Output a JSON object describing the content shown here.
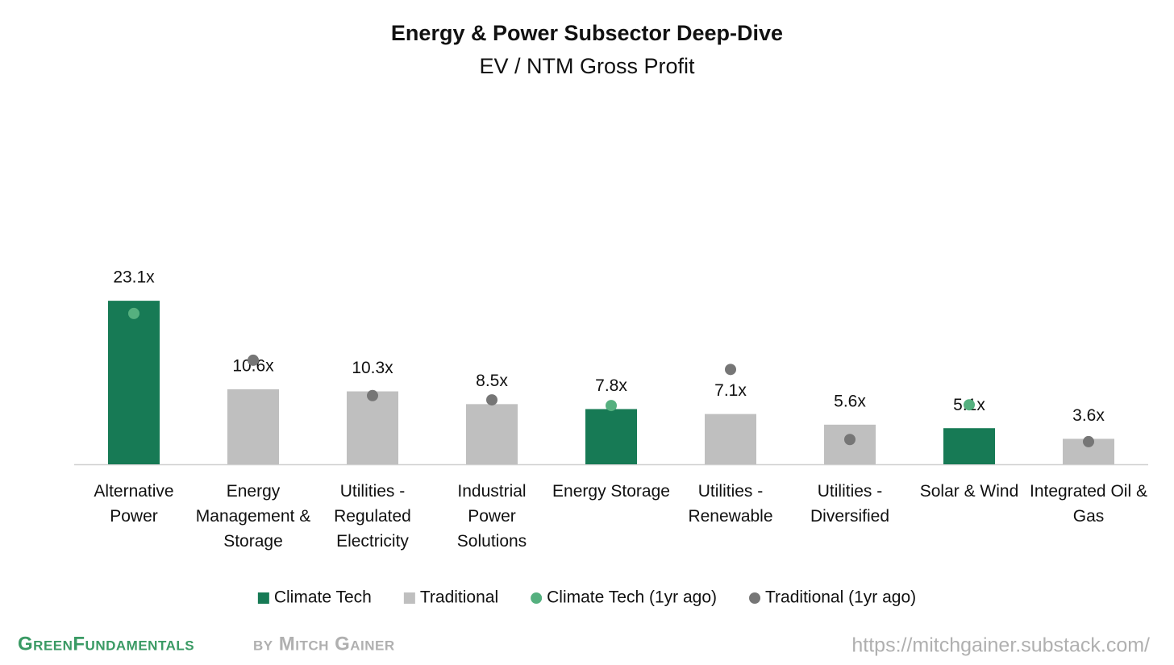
{
  "chart_data": {
    "type": "bar",
    "title": "Energy & Power Subsector Deep-Dive",
    "subtitle": "EV / NTM Gross Profit",
    "categories": [
      "Alternative Power",
      "Energy Management & Storage",
      "Utilities - Regulated Electricity",
      "Industrial Power Solutions",
      "Energy Storage",
      "Utilities - Renewable",
      "Utilities - Diversified",
      "Solar & Wind",
      "Integrated Oil & Gas"
    ],
    "series": [
      {
        "name": "Climate Tech",
        "type": "bar",
        "color": "#177a55",
        "values": [
          23.1,
          null,
          null,
          null,
          7.8,
          null,
          null,
          5.1,
          null
        ],
        "value_labels": [
          "23.1x",
          null,
          null,
          null,
          "7.8x",
          null,
          null,
          "5.1x",
          null
        ]
      },
      {
        "name": "Traditional",
        "type": "bar",
        "color": "#bfbfbf",
        "values": [
          null,
          10.6,
          10.3,
          8.5,
          null,
          7.1,
          5.6,
          null,
          3.6
        ],
        "value_labels": [
          null,
          "10.6x",
          "10.3x",
          "8.5x",
          null,
          "7.1x",
          "5.6x",
          null,
          "3.6x"
        ]
      },
      {
        "name": "Climate Tech (1yr ago)",
        "type": "scatter",
        "color": "#55b07f",
        "values": [
          21.3,
          null,
          null,
          null,
          8.3,
          null,
          null,
          8.4,
          null
        ]
      },
      {
        "name": "Traditional (1yr ago)",
        "type": "scatter",
        "color": "#767676",
        "values": [
          null,
          14.7,
          9.7,
          9.1,
          null,
          13.4,
          3.5,
          null,
          3.2
        ]
      }
    ],
    "ylim": [
      0,
      46
    ],
    "legend": "bottom",
    "footer": {
      "brand": "GreenFundamentals",
      "byline": "by Mitch Gainer",
      "url": "https://mitchgainer.substack.com/"
    }
  }
}
